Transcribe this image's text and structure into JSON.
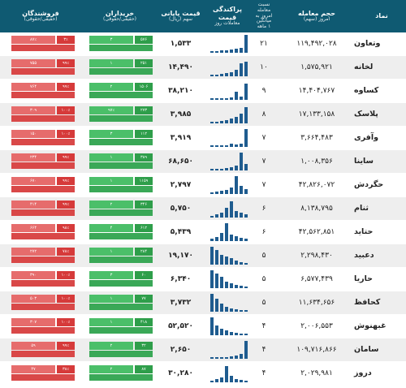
{
  "header": {
    "col_name": "نماد",
    "col_volume": "حجم معامله",
    "col_volume_sub": "امروز (سهم)",
    "col_ratio": "نسبت معامله",
    "col_ratio_sub": "امروز به میانگین",
    "col_ratio_sub2": "۱ ماهه",
    "col_dispersion": "پراکندگی قیمت",
    "col_dispersion_sub": "معاملات روز",
    "col_price": "قیمت پایانی",
    "col_price_sub": "سهم (ریال)",
    "col_buyers": "خریداران",
    "col_buyers_sub": "(حقیقی/حقوقی)",
    "col_sellers": "فروشندگان",
    "col_sellers_sub": "(حقیقی/حقوقی)"
  },
  "rows": [
    {
      "name": "وتعاون",
      "volume": "۱۱۹,۴۹۲,۰۲۸",
      "ratio": "۲۱",
      "price": "۱,۵۳۳",
      "buy": [
        "۵۷۶",
        "۳"
      ],
      "sell": [
        "۳٪",
        "۸۷٪"
      ]
    },
    {
      "name": "لخانه",
      "volume": "۱,۵۷۵,۹۲۱",
      "ratio": "۱۰",
      "price": "۱۴,۴۹۰",
      "buy": [
        "۲۵۱",
        "۱"
      ],
      "sell": [
        "۹۹٪",
        "۷۵۵"
      ]
    },
    {
      "name": "کساوه",
      "volume": "۱۴,۴۰۴,۷۶۷",
      "ratio": "۹",
      "price": "۳۸,۲۱۰",
      "buy": [
        "۱۵۰۶",
        "۲"
      ],
      "sell": [
        "۹۹٪",
        "۷۶۴"
      ]
    },
    {
      "name": "پلاسک",
      "volume": "۱۷,۱۳۳,۱۵۸",
      "ratio": "۸",
      "price": "۳,۹۸۵",
      "buy": [
        "۲۷۳",
        "۹۷٪"
      ],
      "sell": [
        "۱۰۰٪",
        "۳۰۹"
      ]
    },
    {
      "name": "وآفری",
      "volume": "۳,۶۶۴,۴۸۳",
      "ratio": "۷",
      "price": "۳,۹۱۹",
      "buy": [
        "۱۱۲",
        "۳"
      ],
      "sell": [
        "۱۰۰٪",
        "۱۵۰"
      ]
    },
    {
      "name": "ساینا",
      "volume": "۱,۰۰۸,۳۵۶",
      "ratio": "۷",
      "price": "۶۸,۶۵۰",
      "buy": [
        "۳۸۹",
        "۱"
      ],
      "sell": [
        "۹۹٪",
        "۲۳۴"
      ]
    },
    {
      "name": "حگردش",
      "volume": "۴۲,۸۲۶,۰۷۲",
      "ratio": "۷",
      "price": "۲,۷۹۷",
      "buy": [
        "۱۱۵۹",
        "۱"
      ],
      "sell": [
        "۹۹٪",
        "۶۷۰"
      ]
    },
    {
      "name": "ثنام",
      "volume": "۸,۱۳۸,۷۹۵",
      "ratio": "۶",
      "price": "۵,۷۵۰",
      "buy": [
        "۳۴۶",
        "۲"
      ],
      "sell": [
        "۹۹٪",
        "۴۱۴"
      ]
    },
    {
      "name": "حتاید",
      "volume": "۴۲,۵۶۲,۸۵۱",
      "ratio": "۶",
      "price": "۵,۴۳۹",
      "buy": [
        "۶۱۲",
        "۴"
      ],
      "sell": [
        "۹۸٪",
        "۶۶۴"
      ]
    },
    {
      "name": "دعبید",
      "volume": "۲,۲۹۸,۴۳۰",
      "ratio": "۵",
      "price": "۱۹,۱۷۰",
      "buy": [
        "۲۸۴",
        "۱"
      ],
      "sell": [
        "۷۸٪",
        "۲۷۲"
      ]
    },
    {
      "name": "حاریا",
      "volume": "۶,۵۷۷,۴۳۹",
      "ratio": "۵",
      "price": "۶,۳۴۰",
      "buy": [
        "۶۰",
        "۳"
      ],
      "sell": [
        "۱۰۰٪",
        "۳۹۰"
      ]
    },
    {
      "name": "کحافظ",
      "volume": "۱۱,۶۳۴,۶۵۶",
      "ratio": "۵",
      "price": "۳,۷۳۲",
      "buy": [
        "۷۷",
        "۱"
      ],
      "sell": [
        "۱۰۰٪",
        "۵۰۳"
      ]
    },
    {
      "name": "غبهنوش",
      "volume": "۲,۰۰۶,۵۵۳",
      "ratio": "۴",
      "price": "۵۲,۵۲۰",
      "buy": [
        "۴۱۸",
        "۱"
      ],
      "sell": [
        "۱۰۰٪",
        "۳۰۷"
      ]
    },
    {
      "name": "سامان",
      "volume": "۱۰۹,۷۱۶,۸۶۶",
      "ratio": "۴",
      "price": "۲,۶۵۰",
      "buy": [
        "۳۲",
        "۲"
      ],
      "sell": [
        "۹۹٪",
        "۵۹"
      ]
    },
    {
      "name": "دروز",
      "volume": "۲,۰۲۹,۹۸۱",
      "ratio": "۴",
      "price": "۳۰,۲۸۰",
      "buy": [
        "۸۷",
        "۲"
      ],
      "sell": [
        "۳۸٪",
        "۴۷"
      ]
    }
  ]
}
